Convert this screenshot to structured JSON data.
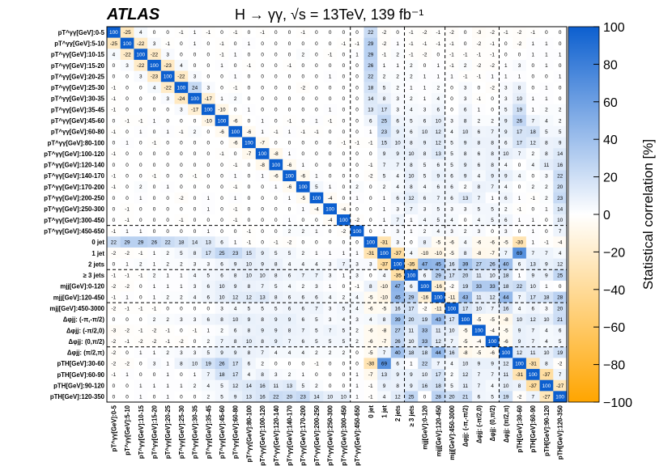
{
  "header": {
    "experiment": "ATLAS",
    "process": "H → γγ, √s = 13TeV, 139 fb⁻¹"
  },
  "chart_data": {
    "type": "heatmap",
    "title": "ATLAS",
    "subtitle": "H → γγ, √s = 13TeV, 139 fb⁻¹",
    "colorbar": {
      "label": "Statistical correlation [%]",
      "range": [
        -100,
        100
      ],
      "ticks": [
        -100,
        -80,
        -60,
        -40,
        -20,
        0,
        20,
        40,
        60,
        80,
        100
      ],
      "colors": {
        "neg": "#ffa500",
        "zero": "#ffffff",
        "pos": "#0c5fcf"
      }
    },
    "group_boundaries": [
      18,
      22,
      25,
      29
    ],
    "labels": [
      "pT^γγ[GeV]:0-5",
      "pT^γγ[GeV]:5-10",
      "pT^γγ[GeV]:10-15",
      "pT^γγ[GeV]:15-20",
      "pT^γγ[GeV]:20-25",
      "pT^γγ[GeV]:25-30",
      "pT^γγ[GeV]:30-35",
      "pT^γγ[GeV]:35-45",
      "pT^γγ[GeV]:45-60",
      "pT^γγ[GeV]:60-80",
      "pT^γγ[GeV]:80-100",
      "pT^γγ[GeV]:100-120",
      "pT^γγ[GeV]:120-140",
      "pT^γγ[GeV]:140-170",
      "pT^γγ[GeV]:170-200",
      "pT^γγ[GeV]:200-250",
      "pT^γγ[GeV]:250-300",
      "pT^γγ[GeV]:300-450",
      "pT^γγ[GeV]:450-650",
      "0 jet",
      "1 jet",
      "2 jets",
      "≥ 3 jets",
      "mjj[GeV]:0-120",
      "mjj[GeV]:120-450",
      "mjj[GeV]:450-3000",
      "Δφjj: (-π,-π/2)",
      "Δφjj: (-π/2,0)",
      "Δφjj: (0,π/2)",
      "Δφjj: (π/2,π)",
      "pTH[GeV]:30-60",
      "pTH[GeV]:60-90",
      "pTH[GeV]:90-120",
      "pTH[GeV]:120-350"
    ],
    "rows": [
      [
        100,
        -25,
        4,
        0,
        0,
        -1,
        1,
        -1,
        0,
        -1,
        0,
        -1,
        0,
        0,
        -1,
        0,
        0,
        0,
        0,
        22,
        -2,
        0,
        -1,
        -2,
        -1,
        -2,
        0,
        -3,
        -2,
        -1,
        -2,
        -1,
        0,
        0
      ],
      [
        -25,
        100,
        -22,
        3,
        -1,
        0,
        1,
        0,
        -1,
        0,
        1,
        0,
        0,
        0,
        0,
        0,
        0,
        -1,
        -1,
        29,
        -2,
        1,
        -1,
        -1,
        -1,
        -1,
        0,
        -2,
        -1,
        0,
        -2,
        1,
        1,
        0
      ],
      [
        4,
        -22,
        100,
        -22,
        3,
        0,
        0,
        0,
        -1,
        1,
        0,
        0,
        0,
        0,
        2,
        0,
        -1,
        0,
        1,
        29,
        -1,
        2,
        -1,
        -2,
        0,
        -1,
        -1,
        -1,
        -1,
        0,
        0,
        1,
        1,
        1
      ],
      [
        0,
        3,
        -22,
        100,
        -23,
        4,
        0,
        0,
        1,
        0,
        -1,
        0,
        0,
        -1,
        0,
        0,
        0,
        0,
        0,
        26,
        1,
        1,
        2,
        0,
        1,
        -1,
        2,
        -2,
        -2,
        1,
        3,
        0,
        1,
        0
      ],
      [
        0,
        0,
        3,
        -23,
        100,
        -22,
        3,
        0,
        0,
        1,
        0,
        0,
        0,
        0,
        0,
        0,
        1,
        0,
        0,
        22,
        2,
        2,
        2,
        1,
        1,
        1,
        -1,
        -1,
        1,
        1,
        1,
        0,
        0,
        1
      ],
      [
        -1,
        0,
        0,
        4,
        -22,
        100,
        24,
        3,
        0,
        -1,
        0,
        0,
        0,
        0,
        -2,
        0,
        0,
        0,
        0,
        18,
        5,
        2,
        1,
        1,
        2,
        0,
        3,
        0,
        -2,
        3,
        8,
        0,
        1,
        0
      ],
      [
        -1,
        0,
        0,
        0,
        3,
        -24,
        100,
        -17,
        1,
        2,
        0,
        0,
        0,
        0,
        0,
        0,
        0,
        0,
        0,
        14,
        8,
        3,
        2,
        1,
        4,
        0,
        3,
        -1,
        0,
        3,
        10,
        1,
        1,
        0
      ],
      [
        -1,
        0,
        0,
        0,
        0,
        3,
        -17,
        100,
        -10,
        0,
        1,
        0,
        0,
        0,
        0,
        0,
        1,
        0,
        0,
        13,
        17,
        3,
        4,
        3,
        6,
        0,
        6,
        1,
        0,
        5,
        19,
        1,
        2,
        2
      ],
      [
        0,
        -1,
        -1,
        1,
        0,
        0,
        0,
        -10,
        100,
        -6,
        0,
        1,
        0,
        -1,
        0,
        1,
        -1,
        0,
        0,
        6,
        25,
        6,
        5,
        6,
        10,
        3,
        8,
        2,
        2,
        9,
        26,
        7,
        4,
        2
      ],
      [
        -1,
        0,
        1,
        0,
        1,
        -1,
        2,
        0,
        -6,
        100,
        -6,
        1,
        -1,
        1,
        -1,
        -1,
        0,
        0,
        0,
        1,
        23,
        9,
        6,
        10,
        12,
        4,
        10,
        6,
        7,
        9,
        17,
        18,
        5,
        5
      ],
      [
        0,
        1,
        0,
        -1,
        0,
        0,
        0,
        0,
        0,
        -6,
        100,
        -7,
        0,
        0,
        0,
        0,
        0,
        -1,
        -1,
        -1,
        15,
        10,
        8,
        9,
        12,
        5,
        9,
        8,
        8,
        6,
        17,
        12,
        8,
        9
      ],
      [
        -1,
        0,
        0,
        0,
        0,
        0,
        0,
        0,
        -1,
        0,
        -7,
        100,
        -8,
        1,
        0,
        0,
        0,
        0,
        0,
        0,
        9,
        9,
        10,
        8,
        13,
        5,
        8,
        6,
        8,
        10,
        7,
        2,
        8,
        14
      ],
      [
        0,
        0,
        0,
        0,
        0,
        0,
        0,
        0,
        0,
        -1,
        0,
        -8,
        100,
        -6,
        1,
        0,
        0,
        0,
        0,
        -1,
        7,
        7,
        8,
        5,
        6,
        5,
        9,
        6,
        8,
        4,
        0,
        4,
        11,
        16
      ],
      [
        -1,
        0,
        0,
        -1,
        0,
        0,
        -1,
        0,
        0,
        1,
        0,
        1,
        -6,
        100,
        -6,
        1,
        0,
        0,
        0,
        -2,
        5,
        4,
        10,
        5,
        9,
        6,
        9,
        4,
        9,
        9,
        4,
        0,
        3,
        22
      ],
      [
        -1,
        0,
        2,
        0,
        1,
        0,
        0,
        0,
        0,
        -1,
        0,
        0,
        1,
        -6,
        100,
        5,
        1,
        0,
        2,
        0,
        2,
        4,
        8,
        4,
        6,
        6,
        2,
        8,
        7,
        4,
        0,
        2,
        2,
        20
      ],
      [
        0,
        0,
        1,
        0,
        0,
        -2,
        0,
        1,
        0,
        1,
        0,
        0,
        0,
        1,
        -5,
        100,
        -4,
        0,
        1,
        0,
        1,
        6,
        12,
        6,
        7,
        6,
        13,
        7,
        1,
        6,
        1,
        -1,
        2,
        23
      ],
      [
        0,
        -1,
        0,
        0,
        0,
        0,
        0,
        1,
        0,
        -1,
        0,
        0,
        0,
        0,
        1,
        -4,
        100,
        -4,
        0,
        0,
        1,
        3,
        7,
        3,
        5,
        3,
        3,
        5,
        5,
        2,
        -1,
        0,
        1,
        14
      ],
      [
        0,
        -1,
        0,
        0,
        0,
        -1,
        0,
        0,
        0,
        -1,
        0,
        0,
        0,
        1,
        0,
        0,
        -4,
        100,
        -2,
        0,
        1,
        7,
        1,
        4,
        5,
        4,
        0,
        4,
        5,
        6,
        1,
        1,
        0,
        10
      ],
      [
        -1,
        1,
        1,
        0,
        0,
        0,
        0,
        1,
        0,
        0,
        -1,
        0,
        0,
        2,
        2,
        1,
        0,
        -2,
        100,
        0,
        1,
        3,
        1,
        2,
        4,
        3,
        2,
        3,
        0,
        3,
        0,
        1,
        0,
        7
      ],
      [
        22,
        29,
        29,
        26,
        22,
        18,
        14,
        13,
        6,
        1,
        -1,
        0,
        -1,
        -2,
        0,
        0,
        0,
        0,
        0,
        100,
        -31,
        3,
        0,
        8,
        -5,
        -6,
        4,
        -6,
        -6,
        -5,
        -30,
        1,
        -1,
        -4
      ],
      [
        -2,
        -2,
        -1,
        1,
        2,
        5,
        8,
        17,
        25,
        23,
        15,
        9,
        5,
        5,
        2,
        1,
        1,
        1,
        1,
        -31,
        100,
        -37,
        4,
        -10,
        -10,
        -5,
        8,
        -8,
        -7,
        7,
        69,
        7,
        7,
        4
      ],
      [
        0,
        1,
        2,
        1,
        2,
        2,
        3,
        3,
        6,
        9,
        10,
        9,
        8,
        4,
        4,
        4,
        3,
        7,
        3,
        3,
        -37,
        100,
        -35,
        47,
        45,
        16,
        39,
        27,
        26,
        40,
        6,
        13,
        9,
        12
      ],
      [
        -1,
        -1,
        -1,
        2,
        1,
        1,
        4,
        5,
        6,
        8,
        10,
        10,
        8,
        6,
        7,
        7,
        3,
        1,
        3,
        0,
        4,
        -35,
        100,
        6,
        29,
        17,
        20,
        11,
        10,
        18,
        1,
        9,
        9,
        25
      ],
      [
        -2,
        -2,
        0,
        1,
        1,
        1,
        3,
        6,
        10,
        9,
        8,
        7,
        5,
        4,
        2,
        3,
        1,
        0,
        -1,
        8,
        -10,
        47,
        6,
        100,
        -16,
        -2,
        19,
        33,
        33,
        18,
        22,
        10,
        1,
        0
      ],
      [
        -1,
        1,
        0,
        1,
        2,
        2,
        4,
        6,
        10,
        12,
        12,
        13,
        8,
        6,
        6,
        6,
        4,
        2,
        4,
        -5,
        -10,
        45,
        29,
        -16,
        100,
        -11,
        43,
        11,
        12,
        44,
        7,
        17,
        18,
        28
      ],
      [
        -2,
        -1,
        -1,
        -1,
        0,
        0,
        0,
        0,
        3,
        4,
        5,
        5,
        5,
        6,
        6,
        7,
        3,
        5,
        4,
        -6,
        -5,
        16,
        17,
        -2,
        -11,
        100,
        17,
        10,
        7,
        16,
        4,
        6,
        3,
        20
      ],
      [
        0,
        0,
        0,
        2,
        2,
        3,
        3,
        6,
        8,
        10,
        9,
        8,
        9,
        9,
        6,
        5,
        3,
        4,
        3,
        4,
        8,
        39,
        20,
        19,
        43,
        17,
        100,
        -5,
        -5,
        -8,
        10,
        12,
        10,
        21
      ],
      [
        -3,
        -2,
        -1,
        -2,
        -1,
        0,
        -1,
        1,
        2,
        6,
        8,
        9,
        9,
        8,
        7,
        5,
        7,
        5,
        2,
        -6,
        -8,
        27,
        11,
        33,
        11,
        10,
        -5,
        100,
        -4,
        -5,
        9,
        7,
        4,
        6
      ],
      [
        -2,
        -1,
        -2,
        -2,
        -1,
        -2,
        0,
        2,
        7,
        8,
        10,
        8,
        9,
        7,
        6,
        5,
        5,
        5,
        2,
        -6,
        -7,
        26,
        10,
        33,
        12,
        7,
        -5,
        -4,
        100,
        -6,
        9,
        7,
        4,
        5
      ],
      [
        -2,
        0,
        1,
        1,
        2,
        3,
        3,
        5,
        9,
        9,
        8,
        7,
        4,
        4,
        4,
        2,
        2,
        2,
        0,
        -5,
        7,
        40,
        18,
        18,
        44,
        16,
        -8,
        -5,
        -6,
        100,
        12,
        11,
        10,
        19
      ],
      [
        -2,
        -2,
        0,
        3,
        1,
        8,
        10,
        19,
        26,
        17,
        6,
        2,
        0,
        0,
        0,
        -1,
        0,
        0,
        0,
        -30,
        69,
        6,
        1,
        22,
        7,
        4,
        10,
        9,
        9,
        12,
        100,
        -31,
        8,
        -2
      ],
      [
        -1,
        1,
        0,
        0,
        1,
        0,
        1,
        7,
        18,
        17,
        4,
        8,
        3,
        2,
        1,
        0,
        0,
        0,
        1,
        -7,
        13,
        9,
        9,
        10,
        17,
        2,
        12,
        7,
        7,
        11,
        -31,
        100,
        -37,
        7
      ],
      [
        0,
        0,
        1,
        1,
        1,
        1,
        2,
        4,
        5,
        12,
        14,
        16,
        11,
        13,
        5,
        2,
        0,
        0,
        1,
        -1,
        9,
        8,
        9,
        16,
        18,
        5,
        11,
        7,
        4,
        10,
        8,
        -37,
        100,
        -27
      ],
      [
        0,
        0,
        1,
        0,
        1,
        0,
        0,
        2,
        5,
        9,
        13,
        16,
        22,
        20,
        23,
        14,
        10,
        10,
        1,
        -1,
        4,
        12,
        25,
        0,
        28,
        20,
        21,
        6,
        5,
        19,
        -2,
        7,
        -27,
        100
      ]
    ]
  }
}
